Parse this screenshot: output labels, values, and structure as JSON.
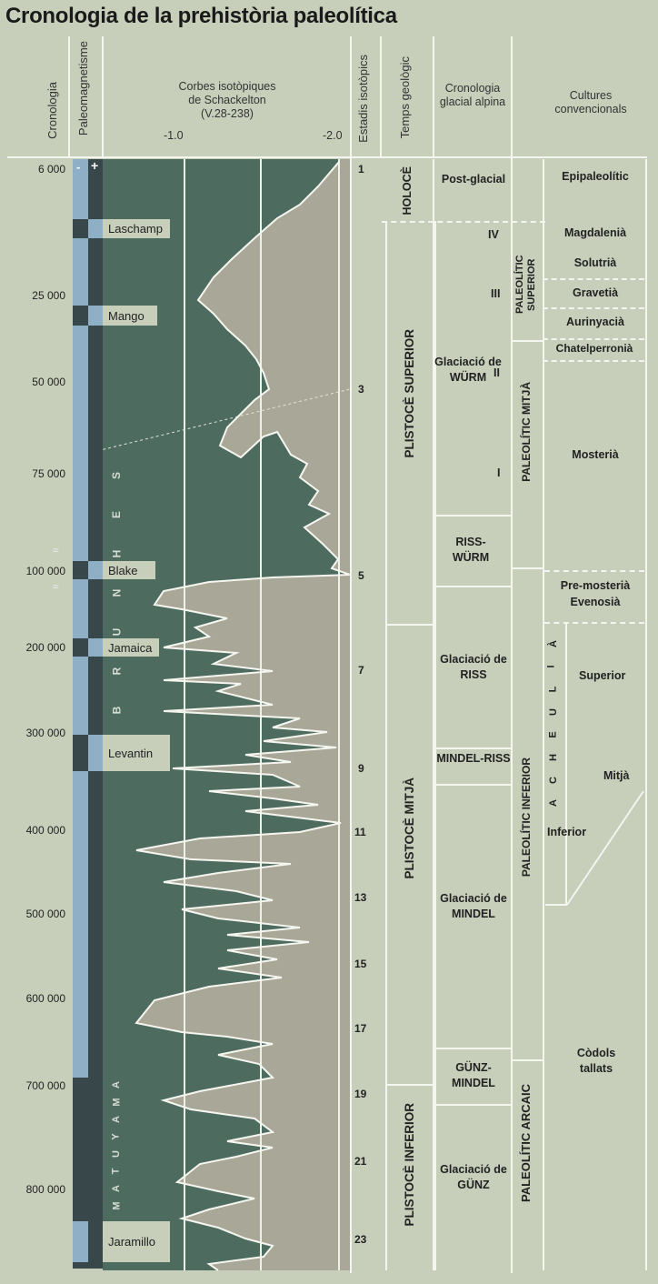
{
  "title": "Cronologia de la prehistòria paleolítica",
  "headers": {
    "cronologia": "Cronologia",
    "paleomagnetisme": "Paleomagnetisme",
    "corbes_l1": "Corbes isotòpiques",
    "corbes_l2": "de Schackelton",
    "corbes_l3": "(V.28-238)",
    "tick1": "-1.0",
    "tick2": "-2.0",
    "estadis": "Estadis isotòpics",
    "temps": "Temps geològic",
    "glacial": "Cronologia glacial alpina",
    "cultures": "Cultures convencionals"
  },
  "polarity": {
    "minus": "-",
    "plus": "+"
  },
  "ages": [
    "6 000",
    "25 000",
    "50 000",
    "75 000",
    "100 000",
    "200 000",
    "300 000",
    "400 000",
    "500 000",
    "600 000",
    "700 000",
    "800 000"
  ],
  "events": [
    "Laschamp",
    "Mango",
    "Blake",
    "Jamaica",
    "Levantin",
    "Jaramillo"
  ],
  "epochs": {
    "brunhes": [
      "B",
      "R",
      "U",
      "N",
      "H",
      "E",
      "S"
    ],
    "matuyama": [
      "M",
      "A",
      "T",
      "U",
      "Y",
      "A",
      "M",
      "A"
    ]
  },
  "stages": [
    "1",
    "3",
    "5",
    "7",
    "9",
    "11",
    "13",
    "15",
    "17",
    "19",
    "21",
    "23"
  ],
  "temps": [
    "HOLOCÈ",
    "PLISTOCÈ SUPERIOR",
    "PLISTOCÈ MITJÀ",
    "PLISTOCÈ INFERIOR"
  ],
  "glacial": {
    "post": "Post-glacial",
    "wurm": "Glaciació de WÜRM",
    "wurm_phases": [
      "IV",
      "III",
      "II",
      "I"
    ],
    "riss_wurm": "RISS-WÜRM",
    "riss": "Glaciació de RISS",
    "mindel_riss": "MINDEL-RISS",
    "mindel": "Glaciació de MINDEL",
    "gunz_mindel": "GÜNZ-MINDEL",
    "gunz": "Glaciació de GÜNZ"
  },
  "periods": [
    "PALEOLÍTIC SUPERIOR",
    "PALEOLÍTIC MITJÀ",
    "PALEOLÍTIC INFERIOR",
    "PALEOLÍTIC ARCAIC"
  ],
  "cultures": {
    "epi": "Epipaleolític",
    "magd": "Magdalenià",
    "solu": "Solutrià",
    "grav": "Gravetià",
    "auri": "Aurinyacià",
    "chat": "Chatelperronià",
    "most": "Mosterià",
    "premost": "Pre-mosterià",
    "eveno": "Evenosià",
    "acheulia": [
      "A",
      "C",
      "H",
      "E",
      "U",
      "L",
      "I",
      "À"
    ],
    "sup": "Superior",
    "mitja": "Mitjà",
    "inf": "Inferior",
    "codols": "Còdols tallats"
  },
  "colors": {
    "bg": "#c7cfbb",
    "dark": "#4e6b5f",
    "light": "#a9a797",
    "blue": "#8eafc6",
    "mag": "#37474a"
  }
}
